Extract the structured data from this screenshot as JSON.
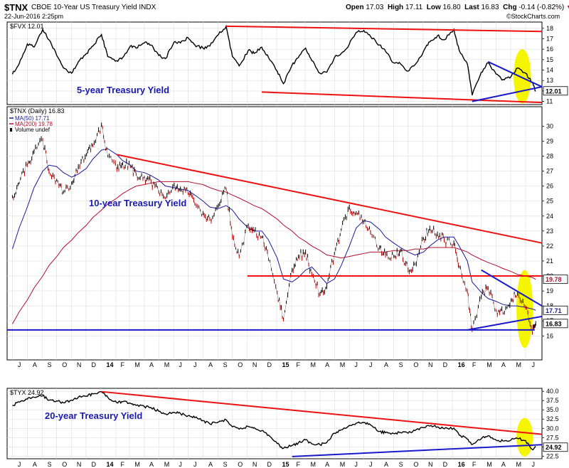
{
  "header": {
    "symbol": "$TNX",
    "name": "CBOE 10-Year US Treasury Yield INDX",
    "date": "22-Jun-2016 2:25pm",
    "open_label": "Open",
    "open": "17.03",
    "high_label": "High",
    "high": "17.11",
    "low_label": "Low",
    "low": "16.80",
    "last_label": "Last",
    "last": "16.83",
    "chg_label": "Chg",
    "chg": "-0.14 (-0.82%)",
    "chg_icon": "down-triangle-icon",
    "brand": "©StockCharts.com"
  },
  "colors": {
    "price": "#000000",
    "down_bar": "#cc0000",
    "ma50": "#1a1a9a",
    "ma200": "#b01030",
    "trend_red": "#ee1111",
    "trend_blue": "#1a1acc",
    "highlight": "#f5f500",
    "annotation": "#1a1ab0"
  },
  "chart_data": [
    {
      "id": "fvx",
      "type": "line",
      "title": "$FVX 12.01",
      "annotation": "5-year Treasury Yield",
      "last_value_label": "12.01",
      "ylim": [
        10.7,
        18.6
      ],
      "yticks": [
        11,
        12,
        13,
        14,
        15,
        16,
        17,
        18
      ],
      "ytick_labels": [
        "11",
        "12",
        "13",
        "14",
        "15",
        "16",
        "17",
        "18"
      ],
      "x": [
        "2013-07-01",
        "2013-07-15",
        "2013-08-01",
        "2013-08-15",
        "2013-09-02",
        "2013-09-15",
        "2013-10-01",
        "2013-10-15",
        "2013-11-01",
        "2013-11-15",
        "2013-12-02",
        "2013-12-15",
        "2014-01-02",
        "2014-01-15",
        "2014-02-03",
        "2014-02-15",
        "2014-03-03",
        "2014-03-15",
        "2014-04-01",
        "2014-04-15",
        "2014-05-01",
        "2014-05-15",
        "2014-06-02",
        "2014-06-15",
        "2014-07-01",
        "2014-07-15",
        "2014-08-01",
        "2014-08-15",
        "2014-09-02",
        "2014-09-18",
        "2014-10-01",
        "2014-10-15",
        "2014-11-03",
        "2014-11-15",
        "2014-12-01",
        "2014-12-15",
        "2015-01-02",
        "2015-01-15",
        "2015-02-02",
        "2015-02-15",
        "2015-03-02",
        "2015-03-15",
        "2015-04-01",
        "2015-04-15",
        "2015-05-01",
        "2015-05-15",
        "2015-06-01",
        "2015-06-15",
        "2015-07-01",
        "2015-07-15",
        "2015-08-03",
        "2015-08-15",
        "2015-09-01",
        "2015-09-15",
        "2015-10-01",
        "2015-10-15",
        "2015-11-02",
        "2015-11-15",
        "2015-12-01",
        "2015-12-15",
        "2016-01-04",
        "2016-01-15",
        "2016-02-01",
        "2016-02-11",
        "2016-03-01",
        "2016-03-15",
        "2016-04-01",
        "2016-04-15",
        "2016-05-02",
        "2016-05-15",
        "2016-06-01",
        "2016-06-15",
        "2016-06-22"
      ],
      "series": [
        {
          "role": "price",
          "values": [
            13.6,
            14.6,
            16.5,
            16.2,
            17.9,
            16.9,
            15.4,
            14.2,
            13.7,
            14.8,
            15.6,
            16.3,
            17.4,
            15.3,
            14.9,
            15.2,
            16.3,
            16.1,
            16.6,
            16.4,
            15.4,
            15.1,
            16.7,
            16.6,
            17.1,
            16.4,
            16.1,
            16.3,
            17.4,
            18.2,
            15.3,
            14.4,
            15.9,
            15.6,
            16.2,
            15.2,
            13.9,
            12.7,
            14.5,
            15.2,
            16.1,
            14.9,
            13.7,
            13.8,
            15.2,
            15.6,
            16.5,
            17.6,
            17.8,
            17.2,
            16.4,
            15.8,
            14.7,
            14.6,
            13.9,
            14.5,
            15.8,
            16.7,
            17.3,
            16.9,
            17.9,
            15.9,
            14.6,
            11.6,
            13.8,
            14.7,
            13.6,
            13.1,
            13.4,
            14.2,
            13.7,
            12.8,
            12.01
          ]
        }
      ],
      "trendlines": [
        {
          "color": "red",
          "from": [
            "2014-09-18",
            18.2
          ],
          "to": [
            "2016-07-05",
            17.7
          ]
        },
        {
          "color": "red",
          "from": [
            "2014-12-01",
            11.9
          ],
          "to": [
            "2016-07-05",
            10.9
          ]
        },
        {
          "color": "blue",
          "from": [
            "2016-03-15",
            14.8
          ],
          "to": [
            "2016-07-05",
            12.4
          ]
        },
        {
          "color": "blue",
          "from": [
            "2016-02-11",
            11.0
          ],
          "to": [
            "2016-07-05",
            12.4
          ]
        }
      ],
      "highlight": {
        "center": [
          "2016-05-25",
          13.4
        ],
        "rx_days": 18,
        "ry": 2.6
      }
    },
    {
      "id": "tnx",
      "type": "line",
      "title": "$TNX (Daily) 16.83",
      "annotation": "10-year Treasury Yield",
      "legend": [
        {
          "label": "MA(50) 17.71",
          "color": "ma50",
          "icon": "line-swatch-icon"
        },
        {
          "label": "MA(200) 19.78",
          "color": "ma200",
          "icon": "line-swatch-icon"
        },
        {
          "label": "Volume undef",
          "color": "price",
          "icon": "bar-swatch-icon"
        }
      ],
      "ylim": [
        14.4,
        31.3
      ],
      "yticks": [
        16,
        17,
        18,
        19,
        20,
        21,
        22,
        23,
        24,
        25,
        26,
        27,
        28,
        29,
        30
      ],
      "ytick_labels": [
        "16",
        "17",
        "18",
        "19",
        "20",
        "21",
        "22",
        "23",
        "24",
        "25",
        "26",
        "27",
        "28",
        "29",
        "30"
      ],
      "value_tags": [
        {
          "label": "19.78",
          "value": 19.78,
          "color": "ma200"
        },
        {
          "label": "17.71",
          "value": 17.71,
          "color": "ma50"
        },
        {
          "label": "16.83",
          "value": 16.83,
          "color": "price"
        }
      ],
      "x": [
        "2013-07-01",
        "2013-07-15",
        "2013-08-01",
        "2013-08-15",
        "2013-09-02",
        "2013-09-15",
        "2013-10-01",
        "2013-10-15",
        "2013-11-01",
        "2013-11-15",
        "2013-12-02",
        "2013-12-15",
        "2014-01-02",
        "2014-01-15",
        "2014-02-03",
        "2014-02-15",
        "2014-03-03",
        "2014-03-15",
        "2014-04-01",
        "2014-04-15",
        "2014-05-01",
        "2014-05-15",
        "2014-06-02",
        "2014-06-15",
        "2014-07-01",
        "2014-07-15",
        "2014-08-01",
        "2014-08-15",
        "2014-09-02",
        "2014-09-18",
        "2014-10-01",
        "2014-10-15",
        "2014-11-03",
        "2014-11-15",
        "2014-12-01",
        "2014-12-15",
        "2015-01-02",
        "2015-01-15",
        "2015-02-02",
        "2015-02-15",
        "2015-03-02",
        "2015-03-15",
        "2015-04-01",
        "2015-04-15",
        "2015-05-01",
        "2015-05-15",
        "2015-06-01",
        "2015-06-15",
        "2015-07-01",
        "2015-07-15",
        "2015-08-03",
        "2015-08-15",
        "2015-09-01",
        "2015-09-15",
        "2015-10-01",
        "2015-10-15",
        "2015-11-02",
        "2015-11-15",
        "2015-12-01",
        "2015-12-15",
        "2016-01-04",
        "2016-01-15",
        "2016-02-01",
        "2016-02-11",
        "2016-03-01",
        "2016-03-15",
        "2016-04-01",
        "2016-04-15",
        "2016-05-02",
        "2016-05-15",
        "2016-06-01",
        "2016-06-15",
        "2016-06-22"
      ],
      "series": [
        {
          "role": "price",
          "name": "$TNX",
          "values": [
            25.3,
            26.2,
            27.4,
            28.3,
            29.1,
            27.0,
            26.4,
            25.6,
            26.2,
            27.3,
            28.1,
            28.7,
            30.1,
            28.0,
            27.1,
            27.5,
            27.3,
            26.8,
            26.6,
            26.3,
            25.6,
            25.2,
            26.1,
            25.8,
            25.5,
            24.8,
            24.2,
            23.8,
            24.7,
            25.8,
            22.6,
            21.3,
            23.4,
            23.0,
            22.6,
            21.1,
            18.9,
            17.1,
            20.4,
            21.3,
            21.6,
            20.1,
            18.8,
            19.3,
            21.5,
            23.1,
            24.6,
            24.2,
            23.6,
            22.9,
            21.9,
            21.4,
            21.3,
            21.7,
            20.4,
            20.8,
            22.5,
            23.2,
            22.8,
            22.4,
            22.2,
            20.6,
            19.0,
            16.4,
            18.6,
            19.2,
            17.7,
            17.5,
            18.4,
            18.8,
            17.9,
            16.2,
            16.83
          ]
        },
        {
          "role": "ma50",
          "name": "MA(50)",
          "values": [
            21.8,
            23.2,
            24.6,
            25.9,
            27.0,
            27.4,
            27.3,
            26.9,
            26.6,
            26.8,
            27.2,
            27.8,
            28.4,
            28.5,
            28.1,
            27.7,
            27.4,
            27.0,
            26.9,
            26.7,
            26.4,
            26.0,
            25.9,
            25.8,
            25.7,
            25.4,
            25.0,
            24.6,
            24.5,
            24.7,
            24.4,
            23.8,
            23.2,
            23.0,
            23.0,
            22.4,
            21.2,
            19.8,
            19.6,
            19.9,
            20.4,
            20.6,
            20.0,
            19.5,
            19.8,
            20.7,
            22.0,
            23.2,
            23.7,
            23.6,
            23.1,
            22.6,
            22.2,
            21.9,
            21.6,
            21.4,
            21.6,
            22.0,
            22.4,
            22.6,
            22.6,
            22.0,
            21.0,
            19.6,
            18.9,
            18.5,
            18.3,
            18.1,
            18.0,
            18.0,
            17.9,
            17.8,
            17.71
          ]
        },
        {
          "role": "ma200",
          "name": "MA(200)",
          "values": [
            16.8,
            17.6,
            18.4,
            19.2,
            20.0,
            20.7,
            21.3,
            21.9,
            22.4,
            22.9,
            23.4,
            23.9,
            24.4,
            24.8,
            25.2,
            25.5,
            25.8,
            26.0,
            26.1,
            26.2,
            26.3,
            26.3,
            26.3,
            26.3,
            26.3,
            26.2,
            26.1,
            25.9,
            25.7,
            25.6,
            25.4,
            25.2,
            24.9,
            24.7,
            24.5,
            24.2,
            23.8,
            23.4,
            23.0,
            22.6,
            22.3,
            22.0,
            21.7,
            21.4,
            21.3,
            21.2,
            21.3,
            21.4,
            21.5,
            21.6,
            21.6,
            21.6,
            21.7,
            21.7,
            21.7,
            21.8,
            21.8,
            21.9,
            21.9,
            21.9,
            21.9,
            21.8,
            21.6,
            21.4,
            21.1,
            20.9,
            20.7,
            20.5,
            20.3,
            20.1,
            20.0,
            19.9,
            19.78
          ]
        }
      ],
      "trendlines": [
        {
          "color": "red",
          "from": [
            "2014-02-03",
            28.1
          ],
          "to": [
            "2016-07-05",
            22.2
          ]
        },
        {
          "color": "red",
          "from": [
            "2014-11-01",
            20.0
          ],
          "to": [
            "2016-07-05",
            20.0
          ]
        },
        {
          "color": "blue",
          "from": [
            "2013-06-20",
            16.4
          ],
          "to": [
            "2016-06-20",
            16.4
          ]
        },
        {
          "color": "blue",
          "from": [
            "2016-03-01",
            20.4
          ],
          "to": [
            "2016-07-05",
            18.0
          ]
        },
        {
          "color": "blue",
          "from": [
            "2016-02-01",
            16.4
          ],
          "to": [
            "2016-07-05",
            17.3
          ]
        }
      ],
      "highlight": {
        "center": [
          "2016-05-30",
          17.8
        ],
        "rx_days": 17,
        "ry": 2.6
      }
    },
    {
      "id": "tyx",
      "type": "line",
      "title": "$TYX 24.92",
      "annotation": "20-year Treasury Yield",
      "last_value_label": "24.92",
      "ylim": [
        21.8,
        40.8
      ],
      "yticks": [
        22.5,
        25.0,
        27.5,
        30.0,
        32.5,
        35.0,
        37.5,
        40.0
      ],
      "ytick_labels": [
        "22.5",
        "25.0",
        "27.5",
        "30.0",
        "32.5",
        "35.0",
        "37.5",
        "40.0"
      ],
      "x": [
        "2013-07-01",
        "2013-07-15",
        "2013-08-01",
        "2013-08-15",
        "2013-09-02",
        "2013-09-15",
        "2013-10-01",
        "2013-10-15",
        "2013-11-01",
        "2013-11-15",
        "2013-12-02",
        "2013-12-15",
        "2014-01-02",
        "2014-01-15",
        "2014-02-03",
        "2014-02-15",
        "2014-03-03",
        "2014-03-15",
        "2014-04-01",
        "2014-04-15",
        "2014-05-01",
        "2014-05-15",
        "2014-06-02",
        "2014-06-15",
        "2014-07-01",
        "2014-07-15",
        "2014-08-01",
        "2014-08-15",
        "2014-09-02",
        "2014-09-18",
        "2014-10-01",
        "2014-10-15",
        "2014-11-03",
        "2014-11-15",
        "2014-12-01",
        "2014-12-15",
        "2015-01-02",
        "2015-01-15",
        "2015-02-02",
        "2015-02-15",
        "2015-03-02",
        "2015-03-15",
        "2015-04-01",
        "2015-04-15",
        "2015-05-01",
        "2015-05-15",
        "2015-06-01",
        "2015-06-15",
        "2015-07-01",
        "2015-07-15",
        "2015-08-03",
        "2015-08-15",
        "2015-09-01",
        "2015-09-15",
        "2015-10-01",
        "2015-10-15",
        "2015-11-02",
        "2015-11-15",
        "2015-12-01",
        "2015-12-15",
        "2016-01-04",
        "2016-01-15",
        "2016-02-01",
        "2016-02-11",
        "2016-03-01",
        "2016-03-15",
        "2016-04-01",
        "2016-04-15",
        "2016-05-02",
        "2016-05-15",
        "2016-06-01",
        "2016-06-15",
        "2016-06-22"
      ],
      "series": [
        {
          "role": "price",
          "values": [
            36.2,
            37.1,
            37.9,
            38.4,
            38.8,
            37.6,
            37.4,
            36.9,
            37.6,
            38.4,
            38.7,
            39.3,
            39.9,
            38.4,
            36.9,
            37.2,
            36.8,
            36.2,
            35.9,
            35.6,
            34.6,
            33.9,
            34.3,
            34.0,
            33.4,
            32.9,
            32.1,
            31.2,
            31.7,
            32.3,
            30.4,
            29.8,
            30.5,
            30.2,
            29.4,
            28.2,
            25.9,
            24.6,
            25.4,
            26.1,
            26.9,
            25.8,
            25.6,
            26.2,
            28.7,
            29.6,
            30.8,
            31.4,
            31.6,
            30.9,
            29.2,
            28.8,
            28.6,
            28.9,
            28.7,
            29.4,
            30.2,
            30.6,
            30.4,
            29.9,
            30.1,
            28.2,
            27.1,
            25.6,
            27.2,
            28.0,
            26.8,
            26.6,
            26.9,
            27.3,
            26.7,
            24.3,
            24.92
          ]
        }
      ],
      "trendlines": [
        {
          "color": "red",
          "from": [
            "2014-01-02",
            39.9
          ],
          "to": [
            "2016-07-05",
            28.4
          ]
        },
        {
          "color": "blue",
          "from": [
            "2015-02-02",
            22.4
          ],
          "to": [
            "2016-07-05",
            25.6
          ]
        }
      ],
      "highlight": {
        "center": [
          "2016-05-30",
          27.6
        ],
        "rx_days": 17,
        "ry": 5.2
      }
    }
  ],
  "x_axis": {
    "top_labels": [
      "J",
      "A",
      "S",
      "O",
      "N",
      "D",
      "14",
      "F",
      "M",
      "A",
      "M",
      "J",
      "J",
      "A",
      "S",
      "O",
      "N",
      "D",
      "15",
      "F",
      "M",
      "A",
      "M",
      "J",
      "J",
      "A",
      "S",
      "O",
      "N",
      "D",
      "16",
      "F",
      "M",
      "A",
      "M",
      "J"
    ],
    "bottom_labels": [
      "J",
      "A",
      "S",
      "O",
      "N",
      "D",
      "14",
      "F",
      "M",
      "A",
      "M",
      "J",
      "J",
      "A",
      "S",
      "O",
      "N",
      "D",
      "15",
      "F",
      "M",
      "A",
      "M",
      "J",
      "J",
      "A",
      "S",
      "O",
      "N",
      "D",
      "16",
      "F",
      "M",
      "A",
      "M",
      "J"
    ],
    "bold_labels": [
      "14",
      "15",
      "16"
    ]
  }
}
